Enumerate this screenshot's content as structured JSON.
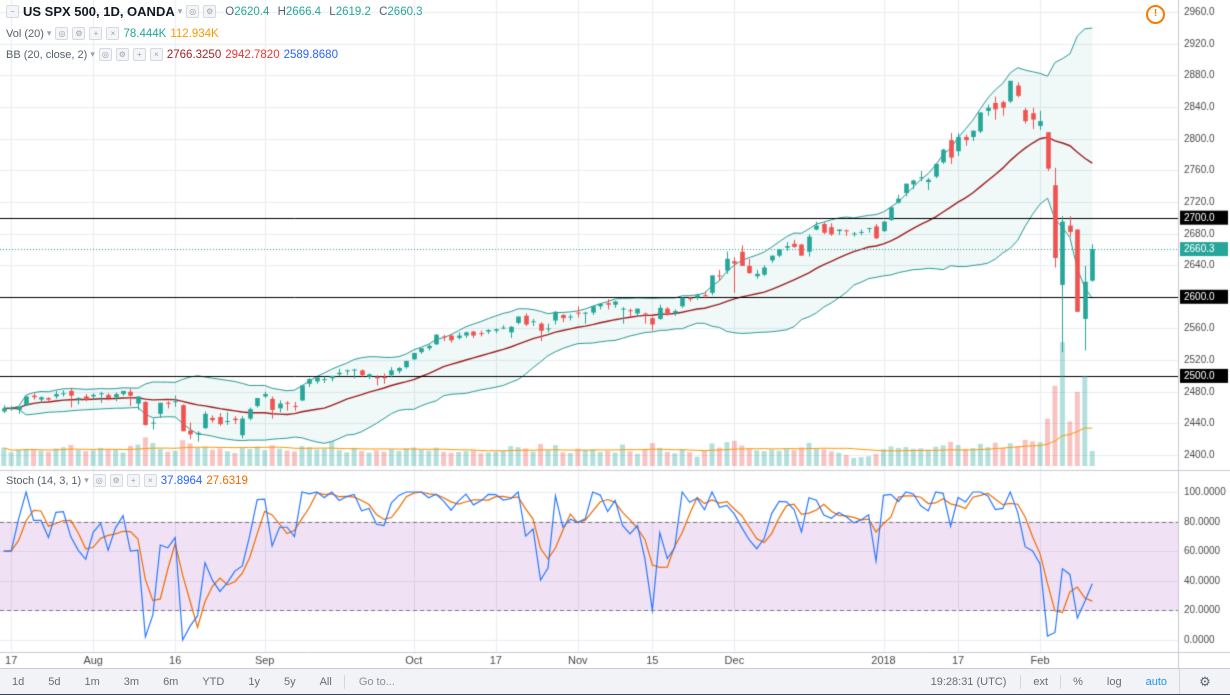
{
  "header": {
    "symbol_title": "US SPX 500, 1D, OANDA",
    "ohlc": {
      "o_label": "O",
      "o": "2620.4",
      "h_label": "H",
      "h": "2666.4",
      "l_label": "L",
      "l": "2619.2",
      "c_label": "C",
      "c": "2660.3"
    },
    "vol": {
      "label": "Vol (20)",
      "value": "78.444K",
      "ma_value": "112.934K"
    },
    "bb": {
      "label": "BB (20, close, 2)",
      "basis": "2766.3250",
      "upper": "2942.7820",
      "lower": "2589.8680"
    }
  },
  "stoch_legend": {
    "label": "Stoch (14, 3, 1)",
    "k_value": "37.8964",
    "d_value": "27.6319"
  },
  "icons": {
    "collapse": "−",
    "caret": "▾",
    "visibility": "◎",
    "settings": "⚙",
    "add": "+",
    "close": "×",
    "alert": "!",
    "gear": "⚙"
  },
  "toolbar": {
    "ranges": [
      "1d",
      "5d",
      "1m",
      "3m",
      "6m",
      "YTD",
      "1y",
      "5y",
      "All"
    ],
    "goto": "Go to...",
    "time": "19:28:31 (UTC)",
    "ext": "ext",
    "percent": "%",
    "log": "log",
    "auto": "auto"
  },
  "colors": {
    "up": "#26a69a",
    "down": "#ef5350",
    "vol_up": "rgba(38,166,154,0.35)",
    "vol_down": "rgba(239,83,80,0.35)",
    "vol_ma": "#ff9800",
    "bb_band": "#2b9a96",
    "bb_basis": "#9c1f1f",
    "bb_fill": "rgba(43,154,150,0.07)",
    "stoch_k": "#2979ff",
    "stoch_d": "#ef6c00",
    "stoch_zone": "rgba(171,71,188,0.16)",
    "grid": "#e9edf2",
    "level": "#000000",
    "axis_text": "#4a4a4a"
  },
  "chart_data": {
    "type": "candlestick",
    "title": "US SPX 500, 1D, OANDA",
    "price_axis": {
      "min": 2400,
      "max": 2960,
      "step": 40
    },
    "stoch_axis": {
      "min": 0,
      "max": 100,
      "step": 20
    },
    "stoch_bands": [
      80,
      20
    ],
    "levels": [
      2700,
      2600,
      2500
    ],
    "price_line": 2660.3,
    "right_pad": 11,
    "volume_unit": "K",
    "indicators": {
      "bb": {
        "length": 20,
        "mult": 2
      },
      "stoch": {
        "k": 14,
        "d": 3,
        "smooth": 1
      },
      "vol_ma": 20
    },
    "x_labels": [
      {
        "i": 1,
        "label": "17"
      },
      {
        "i": 12,
        "label": "Aug"
      },
      {
        "i": 23,
        "label": "16"
      },
      {
        "i": 35,
        "label": "Sep"
      },
      {
        "i": 55,
        "label": "Oct"
      },
      {
        "i": 66,
        "label": "17"
      },
      {
        "i": 77,
        "label": "Nov"
      },
      {
        "i": 87,
        "label": "15"
      },
      {
        "i": 98,
        "label": "Dec"
      },
      {
        "i": 118,
        "label": "2018"
      },
      {
        "i": 128,
        "label": "17"
      },
      {
        "i": 139,
        "label": "Feb"
      }
    ],
    "candles": [
      [
        2455,
        2463,
        2453,
        2459,
        95
      ],
      [
        2459,
        2462,
        2456,
        2459,
        72
      ],
      [
        2457,
        2461,
        2452,
        2461,
        85
      ],
      [
        2463,
        2474,
        2462,
        2474,
        90
      ],
      [
        2475,
        2478,
        2470,
        2473,
        88
      ],
      [
        2470,
        2474,
        2466,
        2473,
        80
      ],
      [
        2472,
        2473,
        2466,
        2470,
        75
      ],
      [
        2474,
        2481,
        2471,
        2477,
        92
      ],
      [
        2478,
        2482,
        2474,
        2478,
        98
      ],
      [
        2481,
        2485,
        2460,
        2475,
        110
      ],
      [
        2470,
        2473,
        2464,
        2472,
        84
      ],
      [
        2474,
        2477,
        2468,
        2470,
        78
      ],
      [
        2474,
        2478,
        2470,
        2476,
        82
      ],
      [
        2478,
        2480,
        2466,
        2478,
        95
      ],
      [
        2476,
        2478,
        2469,
        2472,
        88
      ],
      [
        2473,
        2479,
        2468,
        2477,
        86
      ],
      [
        2477,
        2481,
        2475,
        2481,
        70
      ],
      [
        2480,
        2484,
        2462,
        2475,
        105
      ],
      [
        2465,
        2474,
        2457,
        2474,
        112
      ],
      [
        2467,
        2468,
        2437,
        2438,
        150
      ],
      [
        2440,
        2446,
        2432,
        2441,
        120
      ],
      [
        2452,
        2459,
        2447,
        2466,
        90
      ],
      [
        2466,
        2468,
        2459,
        2465,
        74
      ],
      [
        2468,
        2475,
        2461,
        2468,
        80
      ],
      [
        2463,
        2464,
        2430,
        2430,
        135
      ],
      [
        2431,
        2441,
        2420,
        2426,
        118
      ],
      [
        2426,
        2430,
        2417,
        2428,
        96
      ],
      [
        2434,
        2455,
        2433,
        2452,
        101
      ],
      [
        2447,
        2450,
        2441,
        2444,
        85
      ],
      [
        2448,
        2453,
        2437,
        2439,
        92
      ],
      [
        2443,
        2454,
        2438,
        2443,
        77
      ],
      [
        2446,
        2449,
        2439,
        2444,
        68
      ],
      [
        2425,
        2449,
        2421,
        2446,
        94
      ],
      [
        2446,
        2460,
        2444,
        2458,
        89
      ],
      [
        2462,
        2472,
        2460,
        2472,
        102
      ],
      [
        2474,
        2480,
        2472,
        2477,
        83
      ],
      [
        2471,
        2474,
        2446,
        2457,
        108
      ],
      [
        2459,
        2469,
        2454,
        2465,
        90
      ],
      [
        2466,
        2468,
        2456,
        2465,
        81
      ],
      [
        2462,
        2467,
        2456,
        2461,
        76
      ],
      [
        2469,
        2488,
        2468,
        2488,
        104
      ],
      [
        2490,
        2497,
        2486,
        2496,
        99
      ],
      [
        2493,
        2498,
        2490,
        2498,
        87
      ],
      [
        2495,
        2499,
        2491,
        2496,
        91
      ],
      [
        2497,
        2500,
        2493,
        2500,
        130
      ],
      [
        2502,
        2509,
        2500,
        2504,
        84
      ],
      [
        2506,
        2508,
        2501,
        2507,
        72
      ],
      [
        2507,
        2509,
        2497,
        2508,
        95
      ],
      [
        2507,
        2508,
        2499,
        2501,
        78
      ],
      [
        2499,
        2503,
        2496,
        2502,
        70
      ],
      [
        2499,
        2501,
        2488,
        2497,
        82
      ],
      [
        2499,
        2503,
        2490,
        2497,
        75
      ],
      [
        2501,
        2511,
        2498,
        2507,
        88
      ],
      [
        2506,
        2511,
        2503,
        2510,
        79
      ],
      [
        2511,
        2519,
        2509,
        2519,
        93
      ],
      [
        2521,
        2529,
        2520,
        2529,
        97
      ],
      [
        2530,
        2535,
        2528,
        2535,
        85
      ],
      [
        2535,
        2540,
        2532,
        2538,
        80
      ],
      [
        2540,
        2553,
        2539,
        2552,
        96
      ],
      [
        2550,
        2552,
        2544,
        2549,
        74
      ],
      [
        2551,
        2552,
        2542,
        2545,
        69
      ],
      [
        2548,
        2555,
        2546,
        2551,
        73
      ],
      [
        2551,
        2556,
        2548,
        2555,
        77
      ],
      [
        2556,
        2557,
        2548,
        2551,
        82
      ],
      [
        2554,
        2557,
        2550,
        2553,
        66
      ],
      [
        2556,
        2559,
        2553,
        2558,
        71
      ],
      [
        2557,
        2560,
        2554,
        2559,
        75
      ],
      [
        2561,
        2564,
        2559,
        2561,
        80
      ],
      [
        2555,
        2563,
        2548,
        2562,
        104
      ],
      [
        2567,
        2575,
        2565,
        2575,
        98
      ],
      [
        2576,
        2579,
        2563,
        2565,
        92
      ],
      [
        2568,
        2572,
        2563,
        2569,
        76
      ],
      [
        2566,
        2568,
        2544,
        2557,
        115
      ],
      [
        2560,
        2566,
        2555,
        2560,
        83
      ],
      [
        2570,
        2582,
        2565,
        2581,
        109
      ],
      [
        2577,
        2578,
        2568,
        2573,
        71
      ],
      [
        2574,
        2578,
        2570,
        2575,
        68
      ],
      [
        2580,
        2588,
        2574,
        2579,
        90
      ],
      [
        2579,
        2581,
        2566,
        2580,
        85
      ],
      [
        2580,
        2588,
        2577,
        2588,
        88
      ],
      [
        2588,
        2592,
        2584,
        2591,
        73
      ],
      [
        2592,
        2597,
        2584,
        2590,
        79
      ],
      [
        2590,
        2595,
        2586,
        2594,
        70
      ],
      [
        2584,
        2587,
        2566,
        2585,
        112
      ],
      [
        2583,
        2585,
        2575,
        2582,
        77
      ],
      [
        2579,
        2585,
        2576,
        2585,
        64
      ],
      [
        2579,
        2580,
        2566,
        2578,
        86
      ],
      [
        2573,
        2575,
        2557,
        2565,
        120
      ],
      [
        2572,
        2590,
        2571,
        2586,
        95
      ],
      [
        2585,
        2587,
        2576,
        2579,
        74
      ],
      [
        2579,
        2584,
        2576,
        2582,
        66
      ],
      [
        2588,
        2599,
        2586,
        2599,
        89
      ],
      [
        2599,
        2600,
        2594,
        2597,
        72
      ],
      [
        2599,
        2604,
        2596,
        2602,
        48
      ],
      [
        2602,
        2607,
        2598,
        2601,
        81
      ],
      [
        2605,
        2627,
        2602,
        2627,
        118
      ],
      [
        2627,
        2634,
        2620,
        2626,
        96
      ],
      [
        2633,
        2657,
        2629,
        2648,
        125
      ],
      [
        2645,
        2650,
        2605,
        2642,
        132
      ],
      [
        2657,
        2665,
        2639,
        2639,
        107
      ],
      [
        2639,
        2648,
        2629,
        2630,
        94
      ],
      [
        2626,
        2634,
        2623,
        2629,
        82
      ],
      [
        2628,
        2640,
        2626,
        2637,
        78
      ],
      [
        2646,
        2652,
        2643,
        2652,
        86
      ],
      [
        2652,
        2660,
        2650,
        2660,
        80
      ],
      [
        2662,
        2669,
        2658,
        2664,
        91
      ],
      [
        2667,
        2672,
        2662,
        2663,
        84
      ],
      [
        2666,
        2667,
        2652,
        2652,
        97
      ],
      [
        2657,
        2679,
        2651,
        2676,
        121
      ],
      [
        2685,
        2695,
        2684,
        2690,
        93
      ],
      [
        2692,
        2694,
        2679,
        2681,
        87
      ],
      [
        2688,
        2693,
        2677,
        2679,
        76
      ],
      [
        2683,
        2685,
        2678,
        2685,
        69
      ],
      [
        2684,
        2685,
        2677,
        2683,
        58
      ],
      [
        2679,
        2682,
        2676,
        2680,
        42
      ],
      [
        2682,
        2685,
        2678,
        2682,
        46
      ],
      [
        2686,
        2687,
        2681,
        2687,
        51
      ],
      [
        2689,
        2692,
        2673,
        2674,
        63
      ],
      [
        2683,
        2696,
        2682,
        2695,
        88
      ],
      [
        2697,
        2714,
        2696,
        2713,
        102
      ],
      [
        2719,
        2729,
        2718,
        2724,
        95
      ],
      [
        2731,
        2743,
        2727,
        2743,
        99
      ],
      [
        2742,
        2748,
        2736,
        2747,
        90
      ],
      [
        2751,
        2759,
        2746,
        2751,
        93
      ],
      [
        2745,
        2750,
        2735,
        2748,
        86
      ],
      [
        2752,
        2768,
        2750,
        2768,
        101
      ],
      [
        2770,
        2787,
        2768,
        2786,
        108
      ],
      [
        2798,
        2807,
        2768,
        2776,
        126
      ],
      [
        2784,
        2807,
        2778,
        2802,
        110
      ],
      [
        2802,
        2805,
        2791,
        2798,
        89
      ],
      [
        2802,
        2810,
        2797,
        2810,
        94
      ],
      [
        2809,
        2833,
        2807,
        2833,
        116
      ],
      [
        2835,
        2843,
        2829,
        2839,
        98
      ],
      [
        2845,
        2853,
        2824,
        2837,
        122
      ],
      [
        2846,
        2848,
        2829,
        2839,
        95
      ],
      [
        2847,
        2873,
        2845,
        2873,
        119
      ],
      [
        2867,
        2871,
        2852,
        2854,
        104
      ],
      [
        2836,
        2839,
        2819,
        2822,
        137
      ],
      [
        2832,
        2839,
        2812,
        2824,
        129
      ],
      [
        2816,
        2835,
        2811,
        2822,
        125
      ],
      [
        2808,
        2808,
        2759,
        2762,
        248
      ],
      [
        2741,
        2763,
        2637,
        2649,
        420
      ],
      [
        2615,
        2702,
        2530,
        2695,
        648
      ],
      [
        2690,
        2702,
        2676,
        2682,
        233
      ],
      [
        2685,
        2685,
        2581,
        2581,
        388
      ],
      [
        2572,
        2639,
        2532,
        2619,
        472
      ],
      [
        2620.4,
        2666.4,
        2619.2,
        2660.3,
        78.4
      ]
    ]
  }
}
